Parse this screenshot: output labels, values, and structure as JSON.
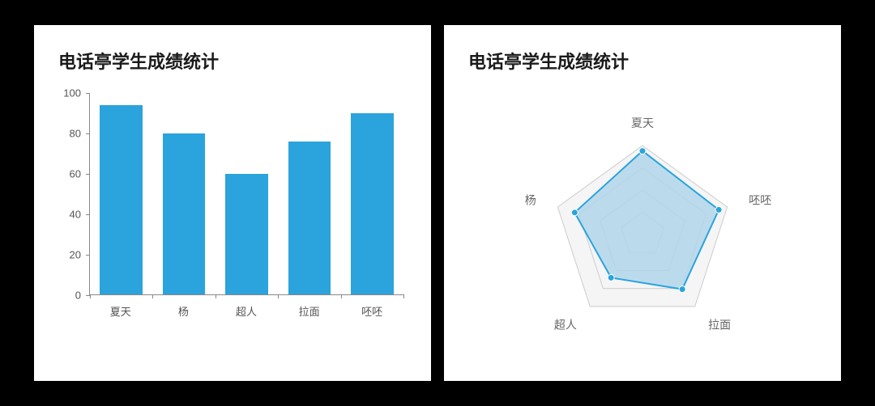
{
  "bar_chart": {
    "type": "bar",
    "title": "电话亭学生成绩统计",
    "categories": [
      "夏天",
      "杨",
      "超人",
      "拉面",
      "呸呸"
    ],
    "values": [
      94,
      80,
      60,
      76,
      90
    ],
    "bar_color": "#2ba3dc",
    "ylim": [
      0,
      100
    ],
    "ytick_step": 20,
    "yticks": [
      0,
      20,
      40,
      60,
      80,
      100
    ],
    "bar_width": 0.68,
    "axis_color": "#888888",
    "background_color": "#ffffff",
    "label_color": "#555555",
    "title_fontsize": 22,
    "label_fontsize": 13
  },
  "radar_chart": {
    "type": "radar",
    "title": "电话亭学生成绩统计",
    "axes": [
      "夏天",
      "呸呸",
      "拉面",
      "超人",
      "杨"
    ],
    "values": [
      94,
      90,
      76,
      60,
      80
    ],
    "max": 100,
    "rings": 4,
    "grid_color": "#cccccc",
    "grid_fill": "#f5f5f5",
    "line_color": "#2ba3dc",
    "fill_color": "#b0d6eb",
    "fill_opacity": 0.85,
    "point_color": "#2ba3dc",
    "point_radius": 4,
    "line_width": 2,
    "label_color": "#666666",
    "background_color": "#ffffff",
    "title_fontsize": 22,
    "label_fontsize": 14
  },
  "page": {
    "background_color": "#000000"
  }
}
